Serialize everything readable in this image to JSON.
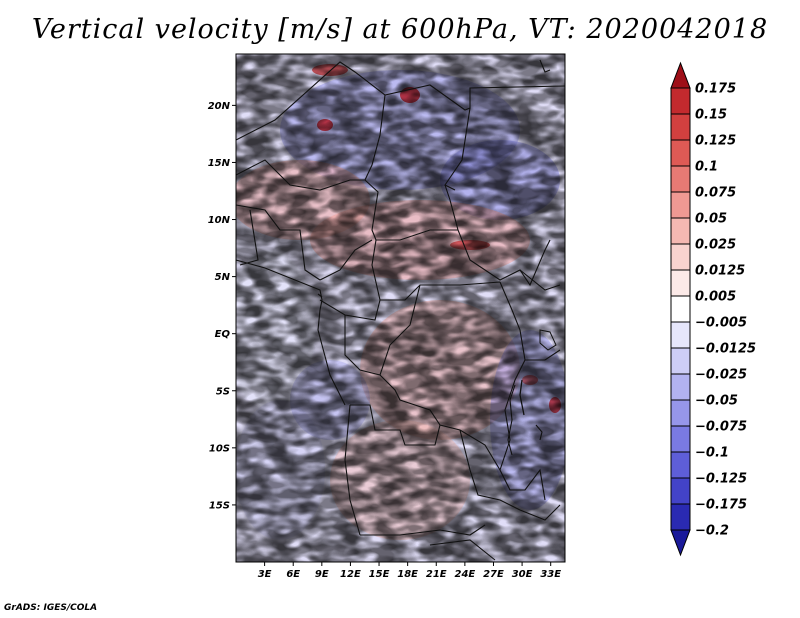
{
  "title": "Vertical velocity [m/s] at 600hPa, VT: 2020042018",
  "credit": "GrADS: IGES/COLA",
  "map": {
    "region": "Central Africa",
    "variable": "Vertical velocity",
    "units": "m/s",
    "level": "600hPa",
    "valid_time": "2020042018",
    "lon_range": [
      0,
      34.5
    ],
    "lat_range": [
      -20,
      24.5
    ],
    "lon_ticks": [
      {
        "value": 3,
        "label": "3E"
      },
      {
        "value": 6,
        "label": "6E"
      },
      {
        "value": 9,
        "label": "9E"
      },
      {
        "value": 12,
        "label": "12E"
      },
      {
        "value": 15,
        "label": "15E"
      },
      {
        "value": 18,
        "label": "18E"
      },
      {
        "value": 21,
        "label": "21E"
      },
      {
        "value": 24,
        "label": "24E"
      },
      {
        "value": 27,
        "label": "27E"
      },
      {
        "value": 30,
        "label": "30E"
      },
      {
        "value": 33,
        "label": "33E"
      }
    ],
    "lat_ticks": [
      {
        "value": 20,
        "label": "20N"
      },
      {
        "value": 15,
        "label": "15N"
      },
      {
        "value": 10,
        "label": "10N"
      },
      {
        "value": 5,
        "label": "5N"
      },
      {
        "value": 0,
        "label": "EQ"
      },
      {
        "value": -5,
        "label": "5S"
      },
      {
        "value": -10,
        "label": "10S"
      },
      {
        "value": -15,
        "label": "15S"
      }
    ]
  },
  "colorbar": {
    "levels": [
      {
        "label": "0.175",
        "color": "#b2121d"
      },
      {
        "label": "0.15",
        "color": "#c32a2e"
      },
      {
        "label": "0.125",
        "color": "#d2403f"
      },
      {
        "label": "0.1",
        "color": "#de5a55"
      },
      {
        "label": "0.075",
        "color": "#e77a74"
      },
      {
        "label": "0.05",
        "color": "#ef9993"
      },
      {
        "label": "0.025",
        "color": "#f5b8b2"
      },
      {
        "label": "0.0125",
        "color": "#f9d3cf"
      },
      {
        "label": "0.005",
        "color": "#fceae8"
      },
      {
        "label": "−0.005",
        "color": "#ffffff"
      },
      {
        "label": "−0.0125",
        "color": "#e6e6fb"
      },
      {
        "label": "−0.025",
        "color": "#cdcdf6"
      },
      {
        "label": "−0.05",
        "color": "#b2b2f0"
      },
      {
        "label": "−0.075",
        "color": "#9696ea"
      },
      {
        "label": "−0.1",
        "color": "#7a7ae2"
      },
      {
        "label": "−0.125",
        "color": "#5e5ed8"
      },
      {
        "label": "−0.175",
        "color": "#4343c8"
      },
      {
        "label": "−0.2",
        "color": "#2a2ab2"
      }
    ],
    "top_color": "#9e0f18",
    "bottom_color": "#1a1a9a"
  }
}
